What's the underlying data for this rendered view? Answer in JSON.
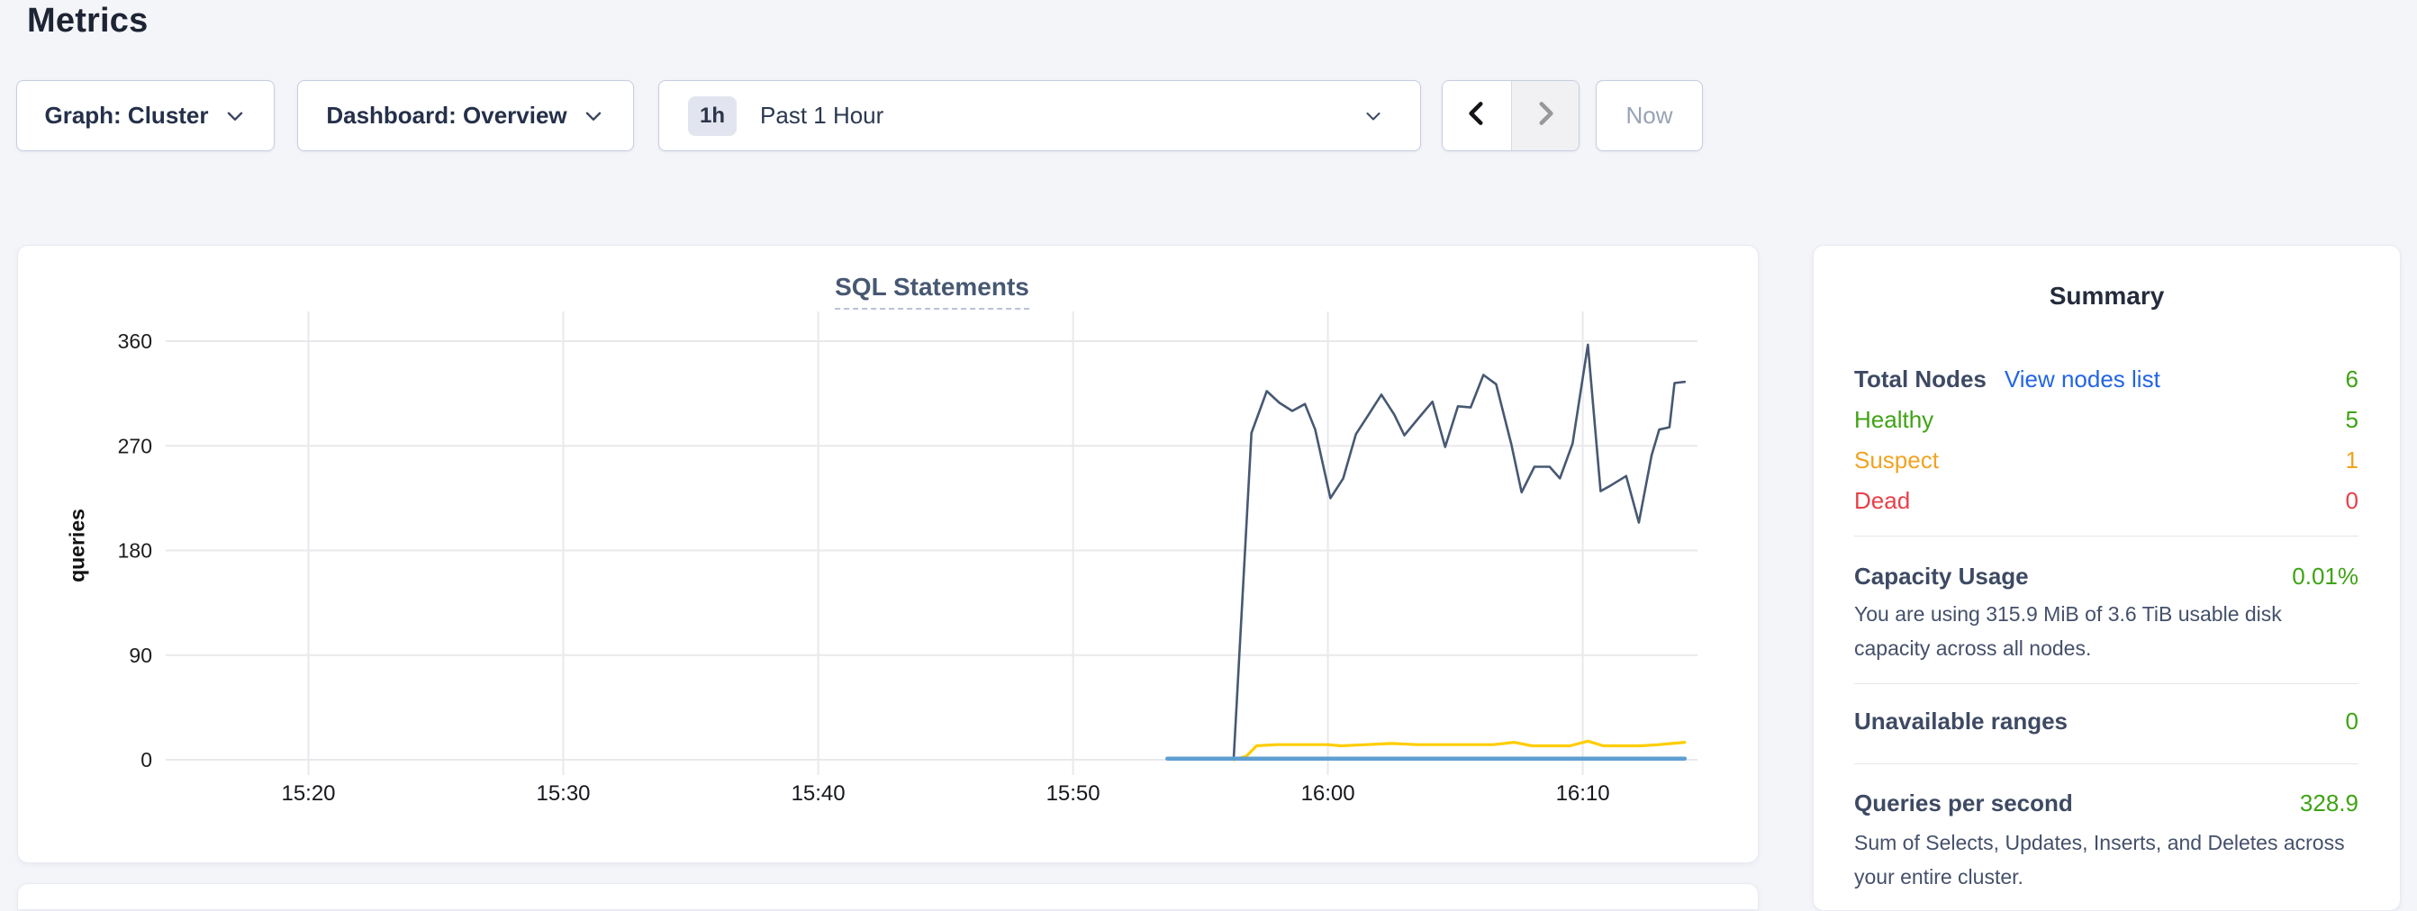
{
  "page": {
    "title": "Metrics"
  },
  "toolbar": {
    "graph_dropdown": {
      "label": "Graph: Cluster"
    },
    "dashboard_dropdown": {
      "label": "Dashboard: Overview"
    },
    "time_selector": {
      "badge": "1h",
      "value": "Past 1 Hour"
    },
    "now_button": {
      "label": "Now"
    }
  },
  "icons": {
    "dropdown_chevron": "chevron-down",
    "prev": "chevron-left",
    "next": "chevron-right"
  },
  "chart_data": {
    "type": "line",
    "title": "SQL Statements",
    "ylabel": "queries",
    "xlabel": "",
    "ylim": [
      0,
      360
    ],
    "y_ticks": [
      0,
      90,
      180,
      270,
      360
    ],
    "x_unit": "minutes after 15:00",
    "x_domain": [
      14.4,
      74.5
    ],
    "x_ticks": [
      {
        "t": 20,
        "label": "15:20"
      },
      {
        "t": 30,
        "label": "15:30"
      },
      {
        "t": 40,
        "label": "15:40"
      },
      {
        "t": 50,
        "label": "15:50"
      },
      {
        "t": 60,
        "label": "16:00"
      },
      {
        "t": 70,
        "label": "16:10"
      }
    ],
    "grid": true,
    "legend_position": "none",
    "series": [
      {
        "name": "series-1-dark-slate",
        "color": "#475872",
        "width": 2.6,
        "points": [
          [
            56.3,
            0
          ],
          [
            57.0,
            281
          ],
          [
            57.6,
            317
          ],
          [
            58.1,
            307
          ],
          [
            58.6,
            300
          ],
          [
            59.1,
            306
          ],
          [
            59.5,
            284
          ],
          [
            60.1,
            225
          ],
          [
            60.6,
            242
          ],
          [
            61.1,
            280
          ],
          [
            61.6,
            297
          ],
          [
            62.1,
            314
          ],
          [
            62.6,
            297
          ],
          [
            63.0,
            279
          ],
          [
            63.6,
            295
          ],
          [
            64.1,
            308
          ],
          [
            64.6,
            269
          ],
          [
            65.1,
            304
          ],
          [
            65.6,
            303
          ],
          [
            66.1,
            331
          ],
          [
            66.6,
            323
          ],
          [
            67.2,
            271
          ],
          [
            67.6,
            230
          ],
          [
            68.1,
            252
          ],
          [
            68.7,
            252
          ],
          [
            69.1,
            242
          ],
          [
            69.6,
            272
          ],
          [
            70.2,
            357
          ],
          [
            70.7,
            231
          ],
          [
            71.1,
            236
          ],
          [
            71.7,
            244
          ],
          [
            72.2,
            204
          ],
          [
            72.7,
            262
          ],
          [
            73.0,
            284
          ],
          [
            73.4,
            286
          ],
          [
            73.6,
            324
          ],
          [
            74.0,
            325
          ]
        ]
      },
      {
        "name": "series-2-yellow",
        "color": "#ffcd00",
        "width": 3.2,
        "points": [
          [
            56.3,
            0
          ],
          [
            56.8,
            3
          ],
          [
            57.2,
            12
          ],
          [
            58,
            13
          ],
          [
            59,
            13
          ],
          [
            60,
            13
          ],
          [
            60.5,
            12
          ],
          [
            61.5,
            13
          ],
          [
            62.5,
            14
          ],
          [
            63.5,
            13
          ],
          [
            64.5,
            13
          ],
          [
            65.5,
            13
          ],
          [
            66.5,
            13
          ],
          [
            67.3,
            15
          ],
          [
            68,
            12
          ],
          [
            68.8,
            12
          ],
          [
            69.5,
            12
          ],
          [
            70.2,
            16
          ],
          [
            70.8,
            12
          ],
          [
            71.5,
            12
          ],
          [
            72.3,
            12
          ],
          [
            73,
            13
          ],
          [
            73.5,
            14
          ],
          [
            74.0,
            15
          ]
        ]
      },
      {
        "name": "series-3-blue",
        "color": "#5d9fd3",
        "width": 4.5,
        "points": [
          [
            53.7,
            1
          ],
          [
            58,
            1
          ],
          [
            62,
            1
          ],
          [
            66,
            1
          ],
          [
            70,
            1
          ],
          [
            74.0,
            1
          ]
        ]
      }
    ]
  },
  "summary": {
    "title": "Summary",
    "node_rows": [
      {
        "label": "Total Nodes",
        "link": "View nodes list",
        "value": "6",
        "label_color": "#3e4a63",
        "link_color": "#2264e5",
        "value_color": "#3fa314"
      },
      {
        "label": "Healthy",
        "value": "5",
        "label_color": "#3fa314",
        "value_color": "#3fa314"
      },
      {
        "label": "Suspect",
        "value": "1",
        "label_color": "#f0a321",
        "value_color": "#f0a321"
      },
      {
        "label": "Dead",
        "value": "0",
        "label_color": "#e8404a",
        "value_color": "#e8404a"
      }
    ],
    "sections": [
      {
        "label": "Capacity Usage",
        "value": "0.01%",
        "value_color": "#3fa314",
        "description": "You are using 315.9 MiB of 3.6 TiB usable disk capacity across all nodes."
      },
      {
        "label": "Unavailable ranges",
        "value": "0",
        "value_color": "#3fa314"
      },
      {
        "label": "Queries per second",
        "value": "328.9",
        "value_color": "#3fa314",
        "description": "Sum of Selects, Updates, Inserts, and Deletes across your entire cluster."
      }
    ]
  }
}
